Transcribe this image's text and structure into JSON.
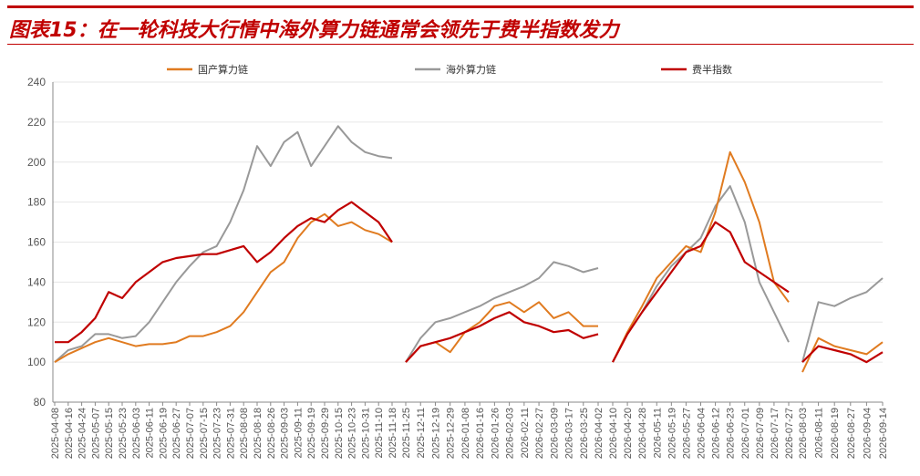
{
  "figure": {
    "title": "图表15：在一轮科技大行情中海外算力链通常会领先于费半指数发力",
    "colors": {
      "brand": "#c00000"
    }
  },
  "chart_data": {
    "type": "line",
    "title": "图表15：在一轮科技大行情中海外算力链通常会领先于费半指数发力",
    "xlabel": "",
    "ylabel": "",
    "ylim": [
      80,
      240
    ],
    "yticks": [
      80,
      100,
      120,
      140,
      160,
      180,
      200,
      220,
      240
    ],
    "grid": true,
    "legend_position": "top",
    "segments": [
      {
        "ticks": [
          "2025-04-08",
          "2025-04-16",
          "2025-04-24",
          "2025-05-07",
          "2025-05-15",
          "2025-05-23",
          "2025-06-03",
          "2025-06-11",
          "2025-06-19",
          "2025-06-27",
          "2025-07-07",
          "2025-07-15",
          "2025-07-23",
          "2025-07-31",
          "2025-08-08",
          "2025-08-18",
          "2025-08-26",
          "2025-09-03",
          "2025-09-11",
          "2025-09-19",
          "2025-09-29",
          "2025-10-15",
          "2025-10-23",
          "2025-10-31",
          "2025-11-10",
          "2025-11-18"
        ],
        "series": [
          {
            "name": "国产算力链",
            "values": [
              100,
              104,
              107,
              110,
              112,
              110,
              108,
              109,
              109,
              110,
              113,
              113,
              115,
              118,
              125,
              135,
              145,
              150,
              162,
              170,
              174,
              168,
              170,
              166,
              164,
              160
            ]
          },
          {
            "name": "海外算力链",
            "values": [
              100,
              106,
              108,
              114,
              114,
              112,
              113,
              120,
              130,
              140,
              148,
              155,
              158,
              170,
              186,
              208,
              198,
              210,
              215,
              198,
              208,
              218,
              210,
              205,
              203,
              202
            ]
          },
          {
            "name": "费半指数",
            "values": [
              110,
              110,
              115,
              122,
              135,
              132,
              140,
              145,
              150,
              152,
              153,
              154,
              154,
              156,
              158,
              150,
              155,
              162,
              168,
              172,
              170,
              176,
              180,
              175,
              170,
              160
            ]
          }
        ]
      },
      {
        "ticks": [
          "2025-11-25",
          "2025-12-11",
          "2025-12-19",
          "2025-12-29",
          "2026-01-08",
          "2026-01-16",
          "2026-01-26",
          "2026-02-03",
          "2026-02-11",
          "2026-02-27",
          "2026-03-09",
          "2026-03-17",
          "2026-03-25",
          "2026-04-02"
        ],
        "series": [
          {
            "name": "国产算力链",
            "values": [
              100,
              108,
              110,
              105,
              115,
              120,
              128,
              130,
              125,
              130,
              122,
              125,
              118,
              118
            ]
          },
          {
            "name": "海外算力链",
            "values": [
              100,
              112,
              120,
              122,
              125,
              128,
              132,
              135,
              138,
              142,
              150,
              148,
              145,
              147
            ]
          },
          {
            "name": "费半指数",
            "values": [
              100,
              108,
              110,
              112,
              115,
              118,
              122,
              125,
              120,
              118,
              115,
              116,
              112,
              114
            ]
          }
        ]
      },
      {
        "ticks": [
          "2026-04-10",
          "2026-04-20",
          "2026-04-28",
          "2026-05-11",
          "2026-05-19",
          "2026-05-27",
          "2026-06-04",
          "2026-06-12",
          "2026-06-23",
          "2026-07-01",
          "2026-07-09",
          "2026-07-17",
          "2026-07-27"
        ],
        "series": [
          {
            "name": "国产算力链",
            "values": [
              100,
              115,
              128,
              142,
              150,
              158,
              155,
              175,
              205,
              190,
              170,
              140,
              130
            ]
          },
          {
            "name": "海外算力链",
            "values": [
              100,
              114,
              125,
              138,
              148,
              155,
              162,
              178,
              188,
              170,
              140,
              125,
              110
            ]
          },
          {
            "name": "费半指数",
            "values": [
              100,
              114,
              125,
              135,
              145,
              155,
              158,
              170,
              165,
              150,
              145,
              140,
              135
            ]
          }
        ]
      },
      {
        "ticks": [
          "2026-08-03",
          "2026-08-11",
          "2026-08-19",
          "2026-08-27",
          "2026-09-04",
          "2026-09-14"
        ],
        "series": [
          {
            "name": "国产算力链",
            "values": [
              95,
              112,
              108,
              106,
              104,
              110
            ]
          },
          {
            "name": "海外算力链",
            "values": [
              100,
              130,
              128,
              132,
              135,
              142
            ]
          },
          {
            "name": "费半指数",
            "values": [
              100,
              108,
              106,
              104,
              100,
              105
            ]
          }
        ]
      }
    ],
    "legend": [
      {
        "name": "国产算力链",
        "color": "#e07b20"
      },
      {
        "name": "海外算力链",
        "color": "#999999"
      },
      {
        "name": "费半指数",
        "color": "#c00000"
      }
    ]
  }
}
